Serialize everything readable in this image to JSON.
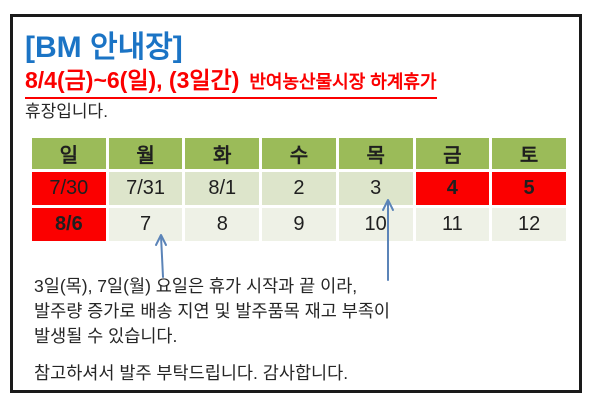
{
  "notice": {
    "title": "[BM 안내장]",
    "headline": {
      "main": "8/4(금)~6(일), (3일간)",
      "sub": "반여농산물시장 하계휴가"
    },
    "subtitle": "휴장입니다.",
    "body_lines": [
      "3일(목), 7일(월) 요일은 휴가 시작과 끝 이라,",
      "발주량 증가로 배송 지연 및 발주품목 재고 부족이",
      "발생될 수 있습니다."
    ],
    "closing": "참고하셔서 발주 부탁드립니다. 감사합니다."
  },
  "calendar": {
    "weekdays": [
      "일",
      "월",
      "화",
      "수",
      "목",
      "금",
      "토"
    ],
    "rows": [
      {
        "cells": [
          {
            "text": "7/30",
            "red": true,
            "bold": false
          },
          {
            "text": "7/31"
          },
          {
            "text": "8/1"
          },
          {
            "text": "2"
          },
          {
            "text": "3"
          },
          {
            "text": "4",
            "red": true,
            "bold": true
          },
          {
            "text": "5",
            "red": true,
            "bold": true
          }
        ]
      },
      {
        "cells": [
          {
            "text": "8/6",
            "red": true,
            "bold": true
          },
          {
            "text": "7"
          },
          {
            "text": "8"
          },
          {
            "text": "9"
          },
          {
            "text": "10"
          },
          {
            "text": "11"
          },
          {
            "text": "12"
          }
        ]
      }
    ]
  },
  "annotations": [
    {
      "name": "arrow-to-3",
      "target": "3"
    },
    {
      "name": "arrow-to-7",
      "target": "7"
    }
  ],
  "colors": {
    "title-blue": "#1b74c5",
    "accent-red": "#fb0000",
    "header-green": "#9bbb59",
    "row1-bg": "#dde5cb",
    "row2-bg": "#eef1e6",
    "arrow-blue": "#5b84b8",
    "frame-border": "#1a1a1a",
    "text-dark": "#262626"
  }
}
